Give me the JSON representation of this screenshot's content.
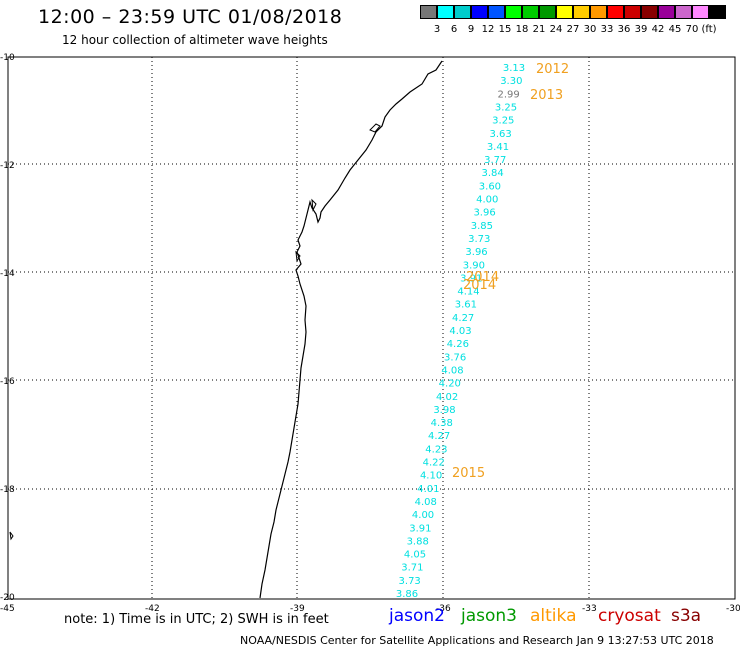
{
  "header": {
    "title": "12:00 – 23:59 UTC 01/08/2018",
    "subtitle": "12 hour collection of altimeter wave heights"
  },
  "scale": {
    "colors": [
      "#777777",
      "#00ffff",
      "#00cccc",
      "#0000ff",
      "#0055ff",
      "#00ff00",
      "#00cc00",
      "#009900",
      "#ffff00",
      "#ffcc00",
      "#ff9900",
      "#ff0000",
      "#cc0000",
      "#880000",
      "#990099",
      "#cc66cc",
      "#ff88ff",
      "#000000"
    ],
    "labels": [
      "3",
      "6",
      "9",
      "12",
      "15",
      "18",
      "21",
      "24",
      "27",
      "30",
      "33",
      "36",
      "39",
      "42",
      "45",
      "70",
      "(ft)"
    ]
  },
  "axes": {
    "lat_labels": [
      "-10",
      "-12",
      "-14",
      "-16",
      "-18",
      "-20"
    ],
    "lon_labels": [
      "-45",
      "-42",
      "-39",
      "-36",
      "-33",
      "-30"
    ]
  },
  "track": {
    "color": "#00e0e0",
    "gray_color": "#777777",
    "values": [
      "3.13",
      "3.30",
      "2.99",
      "3.25",
      "3.25",
      "3.63",
      "3.41",
      "3.77",
      "3.84",
      "3.60",
      "4.00",
      "3.96",
      "3.85",
      "3.73",
      "3.96",
      "3.90",
      "3.91",
      "4.14",
      "3.61",
      "4.27",
      "4.03",
      "4.26",
      "3.76",
      "4.08",
      "4.20",
      "4.02",
      "3.98",
      "4.38",
      "4.27",
      "4.23",
      "4.22",
      "4.10",
      "4.01",
      "4.08",
      "4.00",
      "3.91",
      "3.88",
      "4.05",
      "3.71",
      "3.73",
      "3.86"
    ],
    "gray_index": 2
  },
  "time_labels": {
    "color": "#f0a020",
    "items": [
      "2012",
      "2013",
      "2014",
      "2014",
      "2015"
    ]
  },
  "footer": {
    "note": "note:  1) Time is in UTC;  2) SWH is in feet",
    "satellites": [
      {
        "name": "jason2",
        "color": "#0000ff"
      },
      {
        "name": "jason3",
        "color": "#009900"
      },
      {
        "name": "altika",
        "color": "#ff9900"
      },
      {
        "name": "cryosat",
        "color": "#cc0000"
      },
      {
        "name": "s3a",
        "color": "#880000"
      }
    ],
    "credit": "NOAA/NESDIS Center for Satellite Applications and Research    Jan  9 13:27:53 UTC 2018"
  }
}
